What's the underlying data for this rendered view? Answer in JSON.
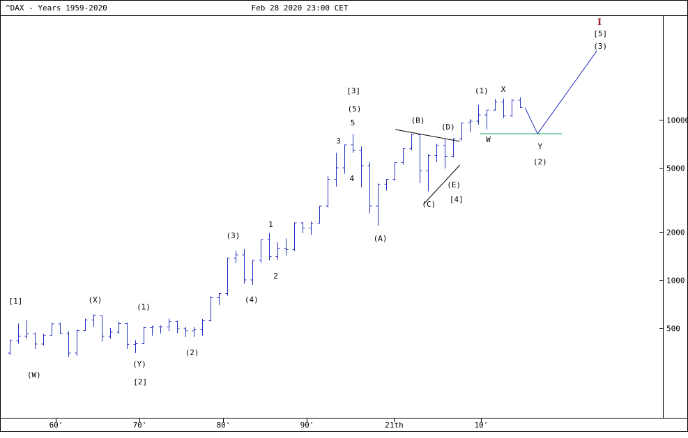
{
  "header": {
    "title": "^DAX - Years 1959-2020",
    "timestamp": "Feb 28 2020 23:00 CET"
  },
  "chart_data": {
    "type": "bar",
    "subtype": "ohlc-yearly",
    "symbol": "^DAX",
    "timeframe": "Years 1959-2020",
    "title": "^DAX - Years 1959-2020",
    "scale": "logarithmic",
    "xlabel": "",
    "ylabel": "",
    "legend": "none",
    "grid": false,
    "colors": {
      "bar": "#2430c0",
      "projection": "#2430c0",
      "support": "#00a050",
      "trendline": "#000000",
      "label": "#000000",
      "major_label": "#9e1b28"
    },
    "y_axis": {
      "side": "right",
      "ticks": [
        10000,
        5000,
        2000,
        1000,
        500
      ]
    },
    "x_axis": {
      "ticks": [
        {
          "label": "60'",
          "year": 1964.5
        },
        {
          "label": "70'",
          "year": 1974.5
        },
        {
          "label": "80'",
          "year": 1984.5
        },
        {
          "label": "90'",
          "year": 1994.5
        },
        {
          "label": "21th",
          "year": 2004.9
        },
        {
          "label": "10'",
          "year": 2015.3
        }
      ]
    },
    "bars": [
      [
        1959,
        350,
        425,
        340,
        417
      ],
      [
        1960,
        417,
        535,
        400,
        445
      ],
      [
        1961,
        445,
        563,
        430,
        460
      ],
      [
        1962,
        460,
        470,
        371,
        398
      ],
      [
        1963,
        398,
        460,
        390,
        452
      ],
      [
        1964,
        452,
        540,
        448,
        532
      ],
      [
        1965,
        532,
        540,
        460,
        465
      ],
      [
        1966,
        465,
        480,
        330,
        350
      ],
      [
        1967,
        350,
        490,
        335,
        483
      ],
      [
        1968,
        483,
        575,
        480,
        563
      ],
      [
        1969,
        563,
        608,
        510,
        597
      ],
      [
        1970,
        597,
        600,
        412,
        444
      ],
      [
        1971,
        444,
        500,
        430,
        473
      ],
      [
        1972,
        473,
        552,
        460,
        536
      ],
      [
        1973,
        536,
        540,
        372,
        396
      ],
      [
        1974,
        396,
        420,
        350,
        401
      ],
      [
        1975,
        401,
        512,
        398,
        503
      ],
      [
        1976,
        503,
        520,
        450,
        509
      ],
      [
        1977,
        509,
        520,
        462,
        510
      ],
      [
        1978,
        510,
        575,
        480,
        550
      ],
      [
        1979,
        550,
        558,
        465,
        497
      ],
      [
        1980,
        497,
        510,
        441,
        481
      ],
      [
        1981,
        481,
        510,
        440,
        490
      ],
      [
        1982,
        490,
        570,
        448,
        558
      ],
      [
        1983,
        558,
        790,
        550,
        774
      ],
      [
        1984,
        774,
        825,
        696,
        821
      ],
      [
        1985,
        821,
        1380,
        800,
        1366
      ],
      [
        1986,
        1366,
        1525,
        1270,
        1432
      ],
      [
        1987,
        1432,
        1560,
        946,
        1000
      ],
      [
        1988,
        1000,
        1340,
        931,
        1327
      ],
      [
        1989,
        1327,
        1800,
        1272,
        1790
      ],
      [
        1990,
        1790,
        1968,
        1322,
        1398
      ],
      [
        1991,
        1398,
        1718,
        1335,
        1578
      ],
      [
        1992,
        1578,
        1812,
        1420,
        1545
      ],
      [
        1993,
        1545,
        2281,
        1516,
        2267
      ],
      [
        1994,
        2267,
        2290,
        1960,
        2107
      ],
      [
        1995,
        2107,
        2317,
        1910,
        2254
      ],
      [
        1996,
        2254,
        2909,
        2253,
        2889
      ],
      [
        1997,
        2889,
        4464,
        2848,
        4250
      ],
      [
        1998,
        4250,
        6224,
        3833,
        5002
      ],
      [
        1999,
        5002,
        7000,
        4601,
        6958
      ],
      [
        2000,
        6958,
        8136,
        6200,
        6434
      ],
      [
        2001,
        6434,
        6795,
        3787,
        5160
      ],
      [
        2002,
        5160,
        5467,
        2598,
        2893
      ],
      [
        2003,
        2893,
        4005,
        2188,
        3965
      ],
      [
        2004,
        3965,
        4272,
        3618,
        4256
      ],
      [
        2005,
        4256,
        5465,
        4157,
        5408
      ],
      [
        2006,
        5408,
        6629,
        5243,
        6597
      ],
      [
        2007,
        6597,
        8151,
        6447,
        8067
      ],
      [
        2008,
        8067,
        8080,
        4014,
        4810
      ],
      [
        2009,
        4810,
        6094,
        3589,
        5957
      ],
      [
        2010,
        5957,
        7088,
        5433,
        6914
      ],
      [
        2011,
        6914,
        7600,
        4966,
        5898
      ],
      [
        2012,
        5898,
        7672,
        5828,
        7612
      ],
      [
        2013,
        7612,
        9589,
        7418,
        9552
      ],
      [
        2014,
        9552,
        10087,
        8355,
        9806
      ],
      [
        2015,
        9806,
        12391,
        9325,
        10743
      ],
      [
        2016,
        10743,
        11481,
        8699,
        11481
      ],
      [
        2017,
        11481,
        13526,
        11415,
        12918
      ],
      [
        2018,
        12918,
        13597,
        10279,
        10559
      ],
      [
        2019,
        10559,
        13408,
        10387,
        13249
      ],
      [
        2020,
        13249,
        13795,
        11890,
        11890
      ]
    ],
    "wave_labels": [
      {
        "text": "[1]",
        "year": 1959.7,
        "price": 740
      },
      {
        "text": "(W)",
        "year": 1961.9,
        "price": 256
      },
      {
        "text": "(X)",
        "year": 1969.2,
        "price": 750
      },
      {
        "text": "(1)",
        "year": 1975.0,
        "price": 680
      },
      {
        "text": "(Y)",
        "year": 1974.5,
        "price": 300
      },
      {
        "text": "[2]",
        "year": 1974.6,
        "price": 232
      },
      {
        "text": "(2)",
        "year": 1980.8,
        "price": 353
      },
      {
        "text": "(3)",
        "year": 1985.7,
        "price": 1900
      },
      {
        "text": "(4)",
        "year": 1987.9,
        "price": 755
      },
      {
        "text": "1",
        "year": 1990.2,
        "price": 2230
      },
      {
        "text": "2",
        "year": 1990.8,
        "price": 1060
      },
      {
        "text": "3",
        "year": 1998.3,
        "price": 7400
      },
      {
        "text": "4",
        "year": 1999.9,
        "price": 4315
      },
      {
        "text": "5",
        "year": 2000.0,
        "price": 9610
      },
      {
        "text": "(5)",
        "year": 2000.2,
        "price": 11740
      },
      {
        "text": "[3]",
        "year": 2000.1,
        "price": 15240
      },
      {
        "text": "(A)",
        "year": 2003.3,
        "price": 1820
      },
      {
        "text": "(B)",
        "year": 2007.8,
        "price": 9950
      },
      {
        "text": "(C)",
        "year": 2009.1,
        "price": 2980
      },
      {
        "text": "(D)",
        "year": 2011.4,
        "price": 9050
      },
      {
        "text": "(E)",
        "year": 2012.1,
        "price": 3940
      },
      {
        "text": "[4]",
        "year": 2012.4,
        "price": 3190
      },
      {
        "text": "(1)",
        "year": 2015.4,
        "price": 15240
      },
      {
        "text": "W",
        "year": 2016.2,
        "price": 7550
      },
      {
        "text": "X",
        "year": 2018.0,
        "price": 15530
      },
      {
        "text": "Y",
        "year": 2022.4,
        "price": 6840
      },
      {
        "text": "(2)",
        "year": 2022.4,
        "price": 5480
      },
      {
        "text": "[5]",
        "year": 2029.6,
        "price": 34600
      },
      {
        "text": "(3)",
        "year": 2029.6,
        "price": 28900
      },
      {
        "text": "I",
        "year": 2029.5,
        "price": 40600,
        "style": "major"
      }
    ],
    "overlay_lines": [
      {
        "name": "projection",
        "color": "projection",
        "points": [
          [
            2020.6,
            11890
          ],
          [
            2022.1,
            8180
          ],
          [
            2029.2,
            27000
          ]
        ]
      },
      {
        "name": "support",
        "color": "support",
        "points": [
          [
            2015.2,
            8180
          ],
          [
            2025.0,
            8180
          ]
        ]
      },
      {
        "name": "trendline-upper",
        "color": "trendline",
        "points": [
          [
            2005.1,
            8690
          ],
          [
            2012.8,
            7330
          ]
        ]
      },
      {
        "name": "trendline-lower",
        "color": "trendline",
        "points": [
          [
            2008.5,
            2980
          ],
          [
            2012.8,
            5210
          ]
        ]
      }
    ]
  }
}
